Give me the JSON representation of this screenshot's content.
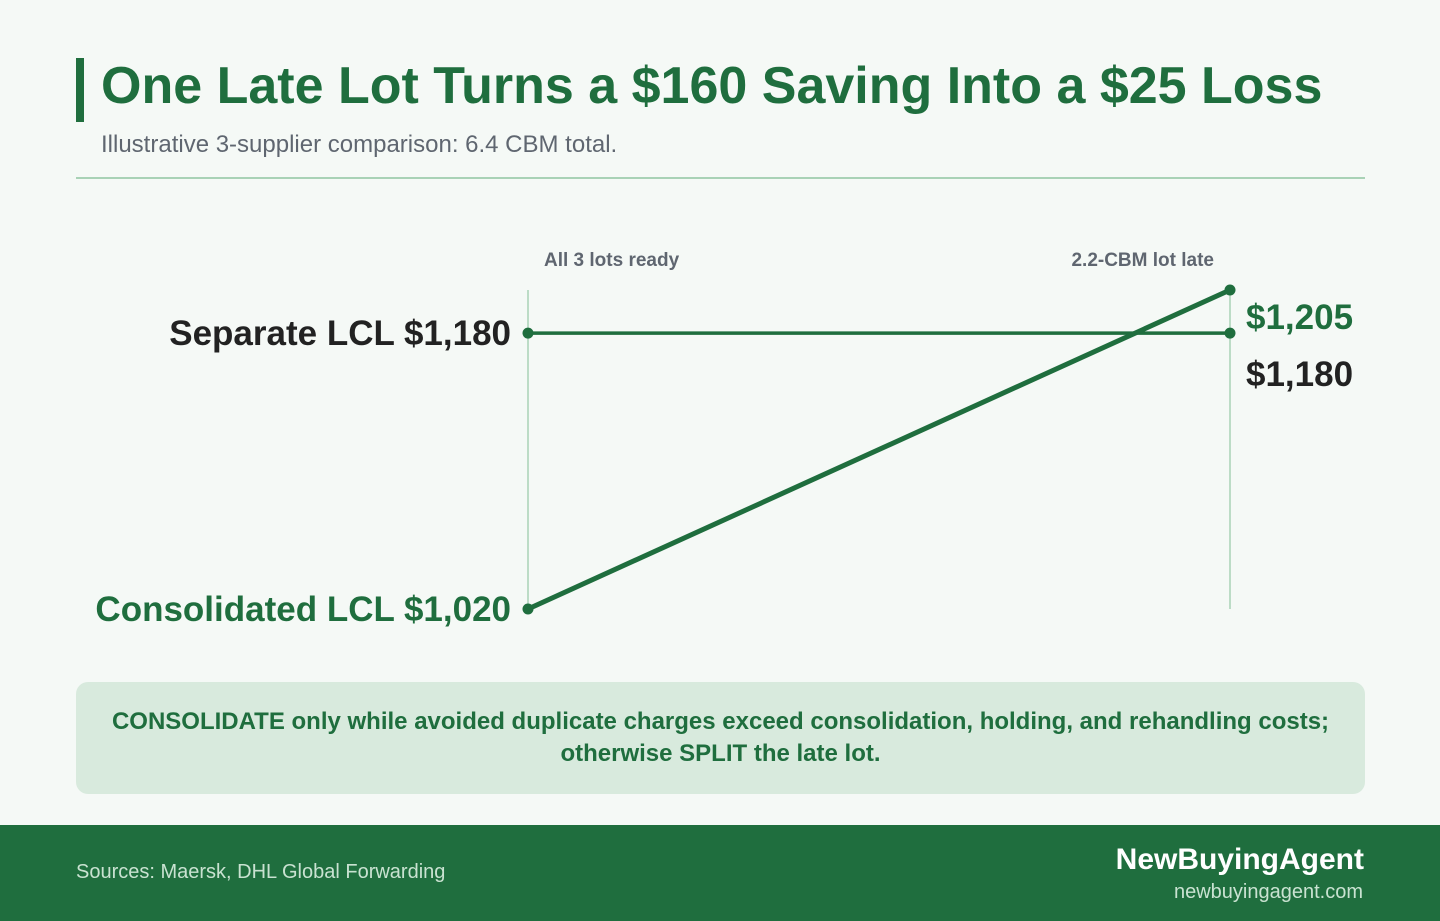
{
  "header": {
    "title": "One Late Lot Turns a $160 Saving Into a $25 Loss",
    "subtitle": "Illustrative 3-supplier comparison: 6.4 CBM total."
  },
  "chart_data": {
    "type": "line",
    "categories": [
      "All 3 lots ready",
      "2.2-CBM lot late"
    ],
    "series": [
      {
        "name": "Separate LCL",
        "values": [
          1180,
          1180
        ],
        "color": "#1f6e3e",
        "start_label": "Separate LCL $1,180",
        "end_label": "$1,180",
        "label_color": "#222222"
      },
      {
        "name": "Consolidated LCL",
        "values": [
          1020,
          1205
        ],
        "color": "#1f6e3e",
        "start_label": "Consolidated LCL $1,020",
        "end_label": "$1,205",
        "label_color": "#1f6e3e"
      }
    ],
    "ylim": [
      1020,
      1205
    ],
    "grid": false,
    "guide_color": "#a9d2b6",
    "label_color_categories": "#5f6670"
  },
  "callout": {
    "strong_consolidate": "CONSOLIDATE",
    "text_1": " only while avoided duplicate charges exceed consolidation, holding, and rehandling costs; otherwise ",
    "strong_split": "SPLIT",
    "text_2": " the late lot."
  },
  "footer": {
    "sources": "Sources: Maersk, DHL Global Forwarding",
    "brand": "NewBuyingAgent",
    "url": "newbuyingagent.com"
  }
}
